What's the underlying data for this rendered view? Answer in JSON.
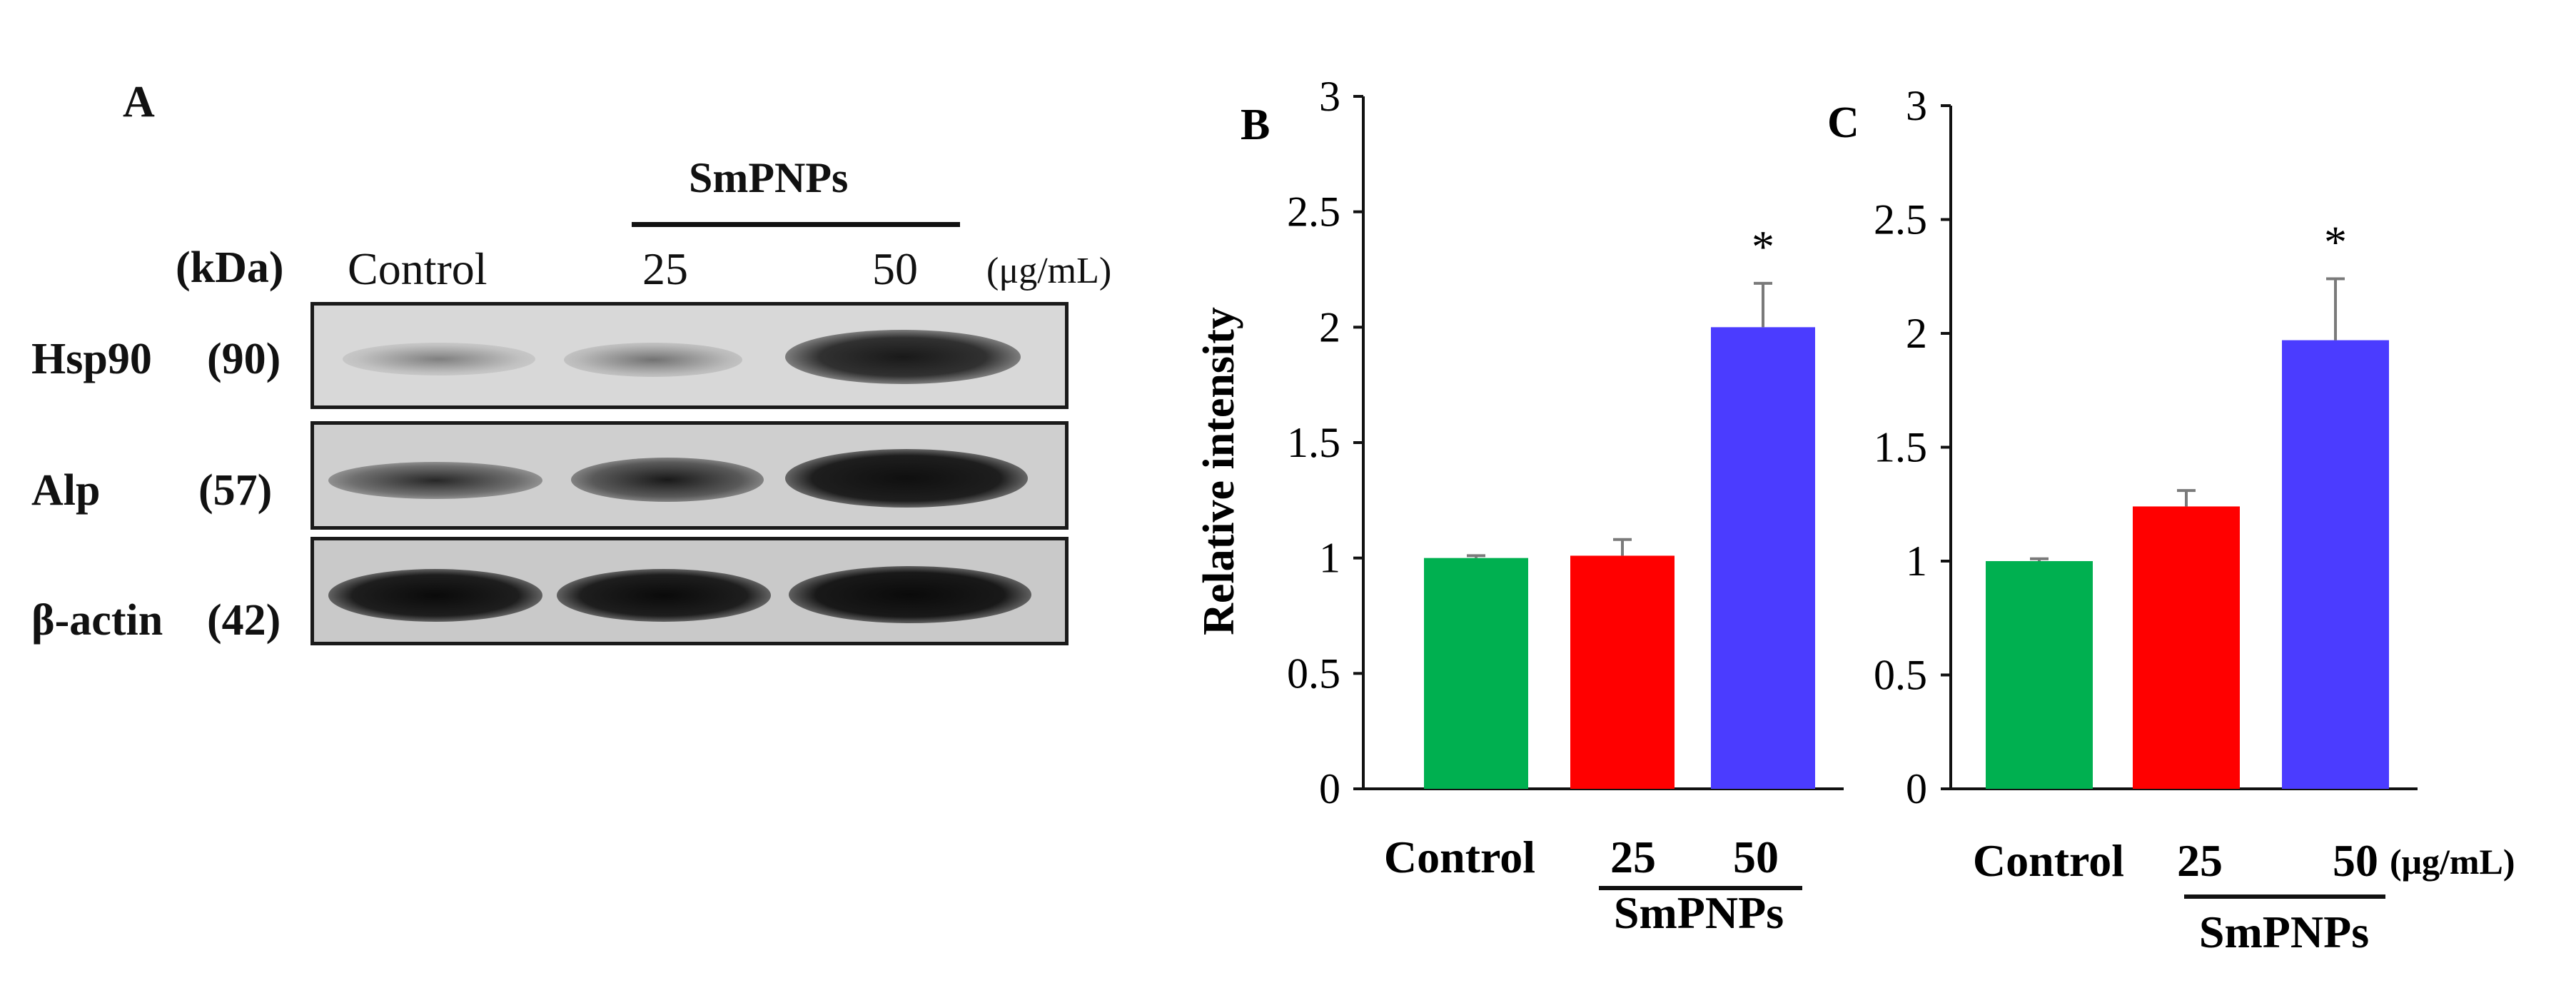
{
  "panel_a": {
    "letter": "A",
    "treatment_group": "SmPNPs",
    "kda_header": "(kDa)",
    "lanes": [
      "Control",
      "25",
      "50"
    ],
    "unit": "(μg/mL)",
    "rows": [
      {
        "protein": "Hsp90",
        "kda": "(90)"
      },
      {
        "protein": "Alp",
        "kda": "(57)"
      },
      {
        "protein": "β-actin",
        "kda": "(42)"
      }
    ]
  },
  "chart_data": [
    {
      "type": "bar",
      "panel": "B",
      "categories": [
        "Control",
        "25",
        "50"
      ],
      "values": [
        1.0,
        1.01,
        2.0
      ],
      "errors": [
        0.01,
        0.07,
        0.19
      ],
      "significance": [
        "",
        "",
        "*"
      ],
      "colors": [
        "#00b050",
        "#ff0000",
        "#4b3cff"
      ],
      "ylabel": "Relative intensity",
      "ylim": [
        0,
        3
      ],
      "yticks": [
        "0",
        "0.5",
        "1",
        "1.5",
        "2",
        "2.5",
        "3"
      ],
      "group_label": "SmPNPs",
      "unit_label": ""
    },
    {
      "type": "bar",
      "panel": "C",
      "categories": [
        "Control",
        "25",
        "50"
      ],
      "values": [
        1.0,
        1.24,
        1.97
      ],
      "errors": [
        0.01,
        0.07,
        0.27
      ],
      "significance": [
        "",
        "",
        "*"
      ],
      "colors": [
        "#00b050",
        "#ff0000",
        "#4b3cff"
      ],
      "ylabel": "",
      "ylim": [
        0,
        3
      ],
      "yticks": [
        "0",
        "0.5",
        "1",
        "1.5",
        "2",
        "2.5",
        "3"
      ],
      "group_label": "SmPNPs",
      "unit_label": "(μg/mL)"
    }
  ]
}
